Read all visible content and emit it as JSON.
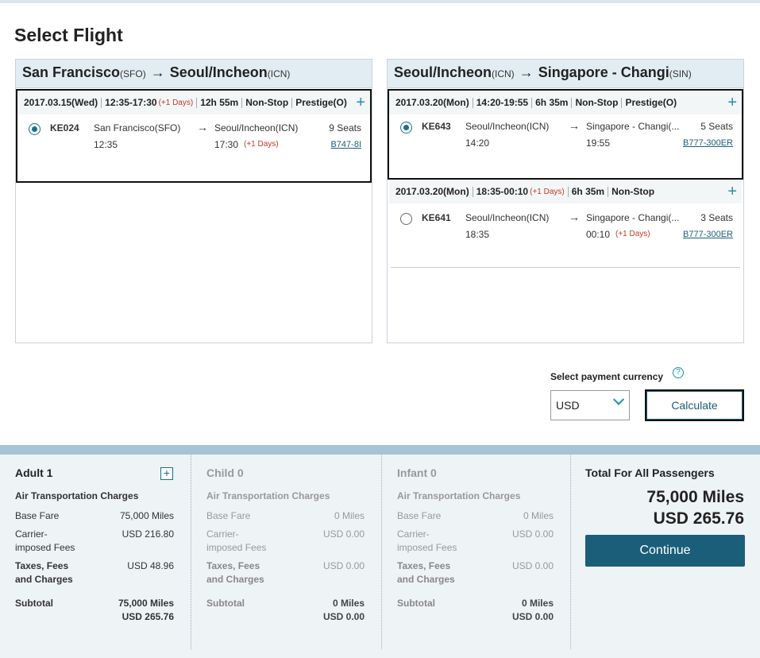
{
  "page_title": "Select Flight",
  "segments": [
    {
      "from_city": "San Francisco",
      "from_code": "(SFO)",
      "to_city": "Seoul/Incheon",
      "to_code": "(ICN)",
      "options": [
        {
          "date": "2017.03.15(Wed)",
          "time": "12:35-17:30",
          "next_day": "(+1 Days)",
          "duration": "12h 55m",
          "stops": "Non-Stop",
          "cabin": "Prestige(O)",
          "flight": "KE024",
          "dep_airport": "San Francisco(SFO)",
          "dep_time": "12:35",
          "arr_airport": "Seoul/Incheon(ICN)",
          "arr_time": "17:30",
          "arr_next_day": "(+1 Days)",
          "seats": "9 Seats",
          "aircraft": "B747-8I",
          "selected": true
        }
      ]
    },
    {
      "from_city": "Seoul/Incheon",
      "from_code": "(ICN)",
      "to_city": "Singapore - Changi",
      "to_code": "(SIN)",
      "options": [
        {
          "date": "2017.03.20(Mon)",
          "time": "14:20-19:55",
          "duration": "6h 35m",
          "stops": "Non-Stop",
          "cabin": "Prestige(O)",
          "flight": "KE643",
          "dep_airport": "Seoul/Incheon(ICN)",
          "dep_time": "14:20",
          "arr_airport": "Singapore - Changi(...",
          "arr_time": "19:55",
          "seats": "5 Seats",
          "aircraft": "B777-300ER",
          "selected": true
        },
        {
          "date": "2017.03.20(Mon)",
          "time": "18:35-00:10",
          "next_day": "(+1 Days)",
          "duration": "6h 35m",
          "stops": "Non-Stop",
          "flight": "KE641",
          "dep_airport": "Seoul/Incheon(ICN)",
          "dep_time": "18:35",
          "arr_airport": "Singapore - Changi(...",
          "arr_time": "00:10",
          "arr_next_day": "(+1 Days)",
          "seats": "3 Seats",
          "aircraft": "B777-300ER",
          "selected": false
        }
      ]
    }
  ],
  "currency": {
    "label": "Select payment currency",
    "help": "?",
    "selected": "USD",
    "calculate_label": "Calculate"
  },
  "passengers": [
    {
      "title": "Adult 1",
      "subtitle": "Air Transportation Charges",
      "base_fare_label": "Base Fare",
      "base_fare": "75,000 Miles",
      "carrier_label_1": "Carrier-",
      "carrier_label_2": "imposed Fees",
      "carrier": "USD 216.80",
      "taxes_label_1": "Taxes, Fees",
      "taxes_label_2": "and Charges",
      "taxes": "USD 48.96",
      "subtotal_label": "Subtotal",
      "subtotal_miles": "75,000 Miles",
      "subtotal_usd": "USD 265.76",
      "add": "+"
    },
    {
      "title": "Child 0",
      "subtitle": "Air Transportation Charges",
      "base_fare_label": "Base Fare",
      "base_fare": "0 Miles",
      "carrier_label_1": "Carrier-",
      "carrier_label_2": "imposed Fees",
      "carrier": "USD 0.00",
      "taxes_label_1": "Taxes, Fees",
      "taxes_label_2": "and Charges",
      "taxes": "USD 0.00",
      "subtotal_label": "Subtotal",
      "subtotal_miles": "0 Miles",
      "subtotal_usd": "USD 0.00"
    },
    {
      "title": "Infant 0",
      "subtitle": "Air Transportation Charges",
      "base_fare_label": "Base Fare",
      "base_fare": "0 Miles",
      "carrier_label_1": "Carrier-",
      "carrier_label_2": "imposed Fees",
      "carrier": "USD 0.00",
      "taxes_label_1": "Taxes, Fees",
      "taxes_label_2": "and Charges",
      "taxes": "USD 0.00",
      "subtotal_label": "Subtotal",
      "subtotal_miles": "0 Miles",
      "subtotal_usd": "USD 0.00"
    }
  ],
  "total": {
    "title": "Total For All Passengers",
    "miles": "75,000 Miles",
    "usd": "USD 265.76",
    "continue_label": "Continue"
  },
  "icons": {
    "arrow": "→",
    "plus": "+",
    "chevron": "chevron-down-icon",
    "help": "help-icon"
  },
  "colors": {
    "accent": "#1b5e7a",
    "teal": "#1f8fa8",
    "next_day_red": "#c0392b",
    "header_bg": "#e2edf3",
    "summary_bg": "#eef3f6"
  }
}
